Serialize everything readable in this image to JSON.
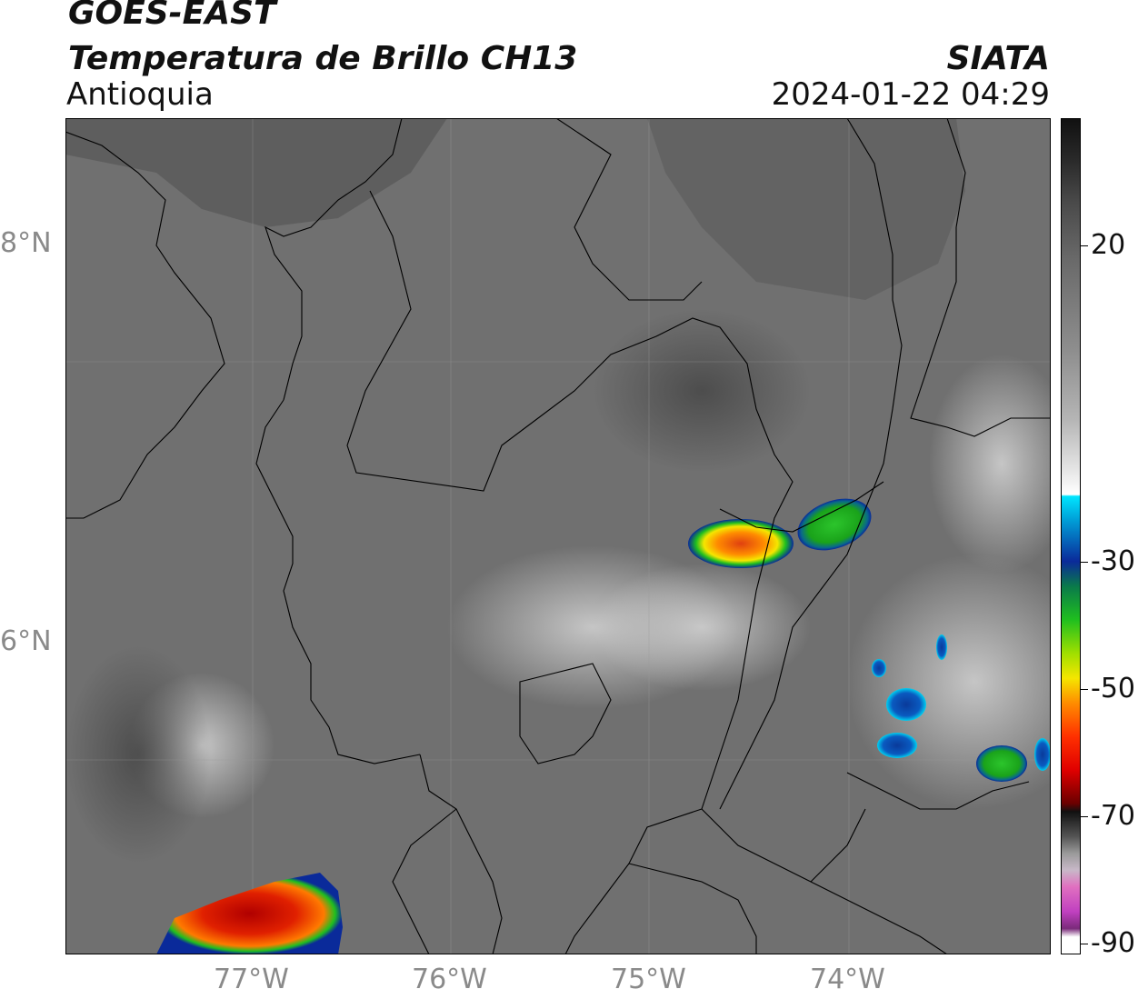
{
  "header": {
    "title": "GOES-EAST",
    "subtitle_bold": "Temperatura de Brillo CH13",
    "region": "Antioquia",
    "organization": "SIATA",
    "datetime": "2024-01-22 04:29"
  },
  "map": {
    "lat_labels": [
      "8°N",
      "6°N"
    ],
    "lon_labels": [
      "77°W",
      "76°W",
      "75°W",
      "74°W"
    ],
    "background_color": "#6f6f6f",
    "border_color": "#000000"
  },
  "colorbar": {
    "ticks": [
      "20",
      "-30",
      "-50",
      "-70",
      "-90"
    ],
    "colors": {
      "warm_gray_top": "#111111",
      "cyan": "#00e5ff",
      "blue": "#0a2a9a",
      "green": "#1fbf1f",
      "yellow": "#f5e600",
      "orange": "#ff8c00",
      "red": "#e00000",
      "dark_red": "#6b0000",
      "magenta": "#c040c0"
    }
  }
}
